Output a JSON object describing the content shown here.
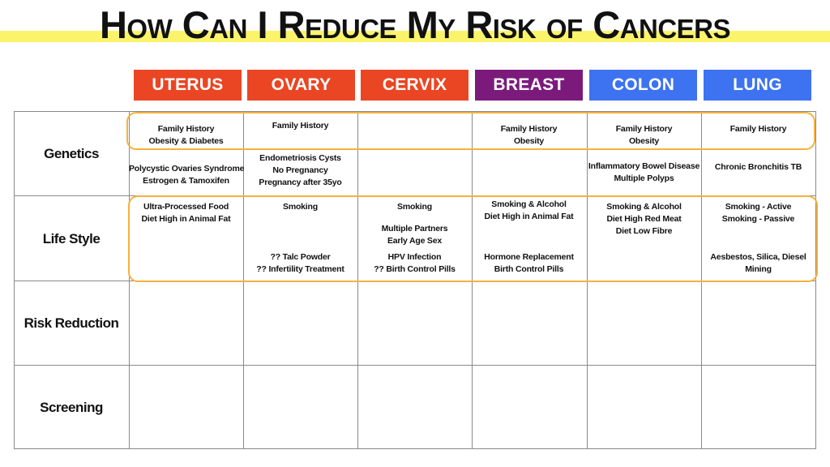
{
  "title": "How Can I Reduce My Risk of Cancers",
  "columns": [
    {
      "label": "UTERUS",
      "color": "#ea4624"
    },
    {
      "label": "OVARY",
      "color": "#ea4624"
    },
    {
      "label": "CERVIX",
      "color": "#ea4624"
    },
    {
      "label": "BREAST",
      "color": "#7c1a7c"
    },
    {
      "label": "COLON",
      "color": "#3d73f0"
    },
    {
      "label": "LUNG",
      "color": "#3d73f0"
    }
  ],
  "rows": [
    "Genetics",
    "Life Style",
    "Risk Reduction",
    "Screening"
  ],
  "genetics_top": [
    [
      "Family History",
      "Obesity & Diabetes"
    ],
    [
      "Family History"
    ],
    [],
    [
      "Family History",
      "Obesity"
    ],
    [
      "Family History",
      "Obesity"
    ],
    [
      "Family History"
    ]
  ],
  "genetics_bottom": [
    [
      "Polycystic Ovaries Syndrome",
      "Estrogen & Tamoxifen"
    ],
    [
      "Endometriosis Cysts",
      "No Pregnancy",
      "Pregnancy after 35yo"
    ],
    [],
    [],
    [
      "Inflammatory Bowel Disease",
      "Multiple Polyps"
    ],
    [
      "Chronic Bronchitis TB"
    ]
  ],
  "lifestyle_top": [
    [
      "Ultra-Processed Food",
      "Diet High in Animal Fat"
    ],
    [
      "Smoking"
    ],
    [
      "Smoking"
    ],
    [
      "Smoking & Alcohol",
      "Diet High in Animal Fat"
    ],
    [
      "Smoking & Alcohol",
      "Diet High Red Meat",
      "Diet Low Fibre"
    ],
    [
      "Smoking - Active",
      "Smoking - Passive"
    ]
  ],
  "lifestyle_mid": [
    [],
    [],
    [
      "Multiple Partners",
      "Early Age Sex"
    ],
    [],
    [],
    []
  ],
  "lifestyle_bottom": [
    [],
    [
      "?? Talc Powder",
      "?? Infertility Treatment"
    ],
    [
      "HPV Infection",
      "?? Birth Control Pills"
    ],
    [
      "Hormone Replacement",
      "Birth Control Pills"
    ],
    [],
    [
      "Aesbestos, Silica, Diesel",
      "Mining"
    ]
  ]
}
